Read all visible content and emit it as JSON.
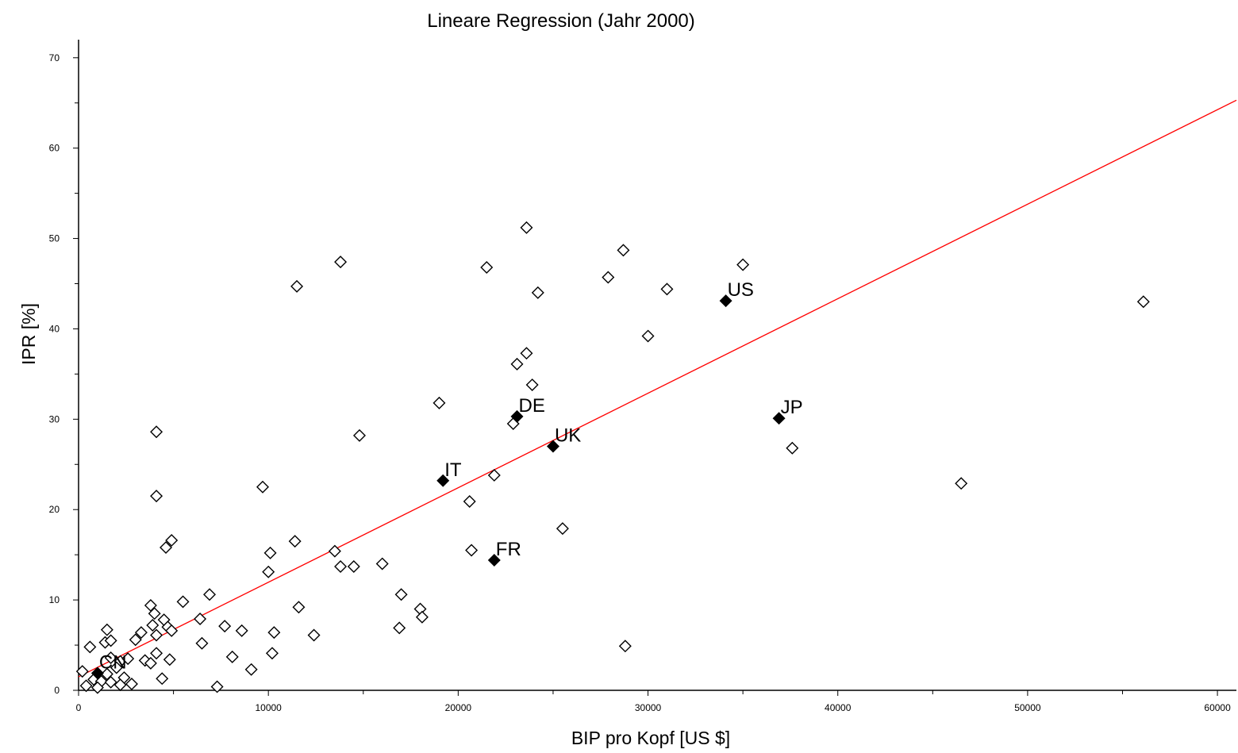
{
  "chart_data": {
    "type": "scatter",
    "title": "Lineare Regression (Jahr 2000)",
    "xlabel": "BIP pro Kopf [US $]",
    "ylabel": "IPR [%]",
    "xlim": [
      0,
      61000
    ],
    "ylim": [
      0,
      72
    ],
    "xticks": [
      0,
      10000,
      20000,
      30000,
      40000,
      50000,
      60000
    ],
    "yticks": [
      0,
      10,
      20,
      30,
      40,
      50,
      60,
      70
    ],
    "grid": false,
    "colors": {
      "points": "#000000",
      "regression_line": "#ff0000"
    },
    "regression_line": {
      "name": "",
      "points": [
        [
          0,
          1.5
        ],
        [
          61000,
          65.3
        ]
      ]
    },
    "labeled_points": [
      {
        "label": "US",
        "x": 34100,
        "y": 43.1
      },
      {
        "label": "JP",
        "x": 36900,
        "y": 30.1
      },
      {
        "label": "DE",
        "x": 23100,
        "y": 30.3
      },
      {
        "label": "UK",
        "x": 25000,
        "y": 27.0
      },
      {
        "label": "IT",
        "x": 19200,
        "y": 23.2
      },
      {
        "label": "FR",
        "x": 21900,
        "y": 14.4
      },
      {
        "label": "CN",
        "x": 1000,
        "y": 1.9
      }
    ],
    "points": [
      [
        23600,
        51.2
      ],
      [
        28700,
        48.7
      ],
      [
        13800,
        47.4
      ],
      [
        21500,
        46.8
      ],
      [
        35000,
        47.1
      ],
      [
        11500,
        44.7
      ],
      [
        27900,
        45.7
      ],
      [
        31000,
        44.4
      ],
      [
        24200,
        44.0
      ],
      [
        56100,
        43.0
      ],
      [
        30000,
        39.2
      ],
      [
        23600,
        37.3
      ],
      [
        23100,
        36.1
      ],
      [
        23900,
        33.8
      ],
      [
        19000,
        31.8
      ],
      [
        22900,
        29.5
      ],
      [
        4100,
        28.6
      ],
      [
        14800,
        28.2
      ],
      [
        37600,
        26.8
      ],
      [
        21900,
        23.8
      ],
      [
        46500,
        22.9
      ],
      [
        9700,
        22.5
      ],
      [
        4100,
        21.5
      ],
      [
        20600,
        20.9
      ],
      [
        25500,
        17.9
      ],
      [
        4900,
        16.6
      ],
      [
        4600,
        15.8
      ],
      [
        11400,
        16.5
      ],
      [
        13500,
        15.4
      ],
      [
        20700,
        15.5
      ],
      [
        10100,
        15.2
      ],
      [
        13800,
        13.7
      ],
      [
        14500,
        13.7
      ],
      [
        16000,
        14.0
      ],
      [
        10000,
        13.1
      ],
      [
        6900,
        10.6
      ],
      [
        17000,
        10.6
      ],
      [
        5500,
        9.8
      ],
      [
        3800,
        9.4
      ],
      [
        11600,
        9.2
      ],
      [
        18000,
        9.0
      ],
      [
        4000,
        8.5
      ],
      [
        6400,
        7.9
      ],
      [
        4500,
        7.8
      ],
      [
        18100,
        8.1
      ],
      [
        3900,
        7.2
      ],
      [
        7700,
        7.1
      ],
      [
        4700,
        7.0
      ],
      [
        1500,
        6.7
      ],
      [
        4900,
        6.6
      ],
      [
        8600,
        6.6
      ],
      [
        3300,
        6.4
      ],
      [
        10300,
        6.4
      ],
      [
        4100,
        6.1
      ],
      [
        12400,
        6.1
      ],
      [
        3000,
        5.6
      ],
      [
        1400,
        5.3
      ],
      [
        1700,
        5.5
      ],
      [
        16900,
        6.9
      ],
      [
        6500,
        5.2
      ],
      [
        600,
        4.8
      ],
      [
        28800,
        4.9
      ],
      [
        4100,
        4.1
      ],
      [
        10200,
        4.1
      ],
      [
        8100,
        3.7
      ],
      [
        4800,
        3.4
      ],
      [
        3500,
        3.3
      ],
      [
        3800,
        3.0
      ],
      [
        2200,
        3.2
      ],
      [
        1700,
        3.6
      ],
      [
        2600,
        3.5
      ],
      [
        9100,
        2.3
      ],
      [
        2000,
        2.5
      ],
      [
        200,
        2.1
      ],
      [
        4400,
        1.3
      ],
      [
        1500,
        1.8
      ],
      [
        2400,
        1.4
      ],
      [
        800,
        1.2
      ],
      [
        1200,
        1.0
      ],
      [
        1700,
        0.9
      ],
      [
        2800,
        0.7
      ],
      [
        400,
        0.5
      ],
      [
        7300,
        0.4
      ],
      [
        1000,
        0.3
      ],
      [
        2200,
        0.6
      ]
    ]
  }
}
